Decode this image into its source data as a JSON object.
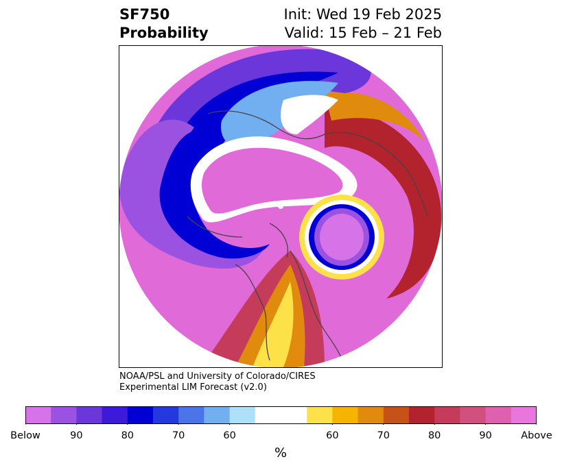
{
  "title": {
    "variable": "SF750",
    "subtitle": "Probability",
    "init": "Init: Wed 19 Feb 2025",
    "valid": "Valid: 15 Feb – 21 Feb"
  },
  "credit": {
    "line1": "NOAA/PSL and University of Colorado/CIRES",
    "line2": "Experimental LIM Forecast (v2.0)"
  },
  "colorbar": {
    "units": "%",
    "below_colors": [
      "#d673e8",
      "#9b52e0",
      "#6b37db",
      "#3b1bd9",
      "#0000d4",
      "#2339de",
      "#4a74e8",
      "#72aff0",
      "#ade0fa"
    ],
    "neutral_color": "#ffffff",
    "above_colors": [
      "#fde148",
      "#f4b400",
      "#e08a0e",
      "#c65219",
      "#b3232d",
      "#c43c5a",
      "#d2507e",
      "#e060b0",
      "#e876dc"
    ],
    "tick_labels": [
      "Below",
      "90",
      "80",
      "70",
      "60",
      "60",
      "70",
      "80",
      "90",
      "Above"
    ]
  },
  "map": {
    "projection": "north-polar-stereographic",
    "colors": {
      "outer_above": "#e06ad8",
      "deep_below": "#3b1bd9",
      "mid_below": "#9b52e0",
      "coast": "#444444"
    }
  }
}
